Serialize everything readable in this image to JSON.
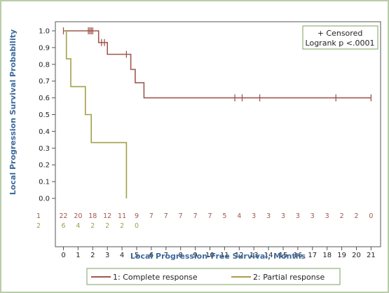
{
  "chart_data": {
    "type": "line",
    "subtype": "kaplan-meier step curve",
    "xlabel": "Local Progression-Free Survival, Months",
    "ylabel": "Local Progression Survival Probability",
    "xlim": [
      -0.5,
      21.5
    ],
    "ylim": [
      0,
      1.0
    ],
    "xticks": [
      "0",
      "1",
      "2",
      "3",
      "4",
      "5",
      "6",
      "7",
      "8",
      "9",
      "10",
      "11",
      "12",
      "13",
      "14",
      "15",
      "16",
      "17",
      "18",
      "19",
      "20",
      "21"
    ],
    "yticks": [
      "0.0",
      "0.1",
      "0.2",
      "0.3",
      "0.4",
      "0.5",
      "0.6",
      "0.7",
      "0.8",
      "0.9",
      "1.0"
    ],
    "annotation": [
      "+ Censored",
      "Logrank p <.0001"
    ],
    "series": [
      {
        "name": "1: Complete response",
        "risk_label": "1",
        "color": "#a0574e",
        "steps": [
          [
            0,
            1.0
          ],
          [
            2.4,
            1.0
          ],
          [
            2.4,
            0.93
          ],
          [
            3.0,
            0.93
          ],
          [
            3.0,
            0.86
          ],
          [
            4.6,
            0.86
          ],
          [
            4.6,
            0.77
          ],
          [
            4.9,
            0.77
          ],
          [
            4.9,
            0.69
          ],
          [
            5.5,
            0.69
          ],
          [
            5.5,
            0.6
          ],
          [
            21.0,
            0.6
          ]
        ],
        "censored": [
          [
            0.0,
            1.0
          ],
          [
            1.7,
            1.0
          ],
          [
            1.8,
            1.0
          ],
          [
            1.9,
            1.0
          ],
          [
            2.0,
            1.0
          ],
          [
            2.6,
            0.93
          ],
          [
            2.8,
            0.93
          ],
          [
            4.3,
            0.86
          ],
          [
            11.7,
            0.6
          ],
          [
            12.2,
            0.6
          ],
          [
            13.4,
            0.6
          ],
          [
            18.6,
            0.6
          ],
          [
            21.0,
            0.6
          ]
        ],
        "at_risk": [
          "22",
          "20",
          "18",
          "12",
          "11",
          "9",
          "7",
          "7",
          "7",
          "7",
          "7",
          "5",
          "4",
          "3",
          "3",
          "3",
          "3",
          "3",
          "3",
          "2",
          "2",
          "0"
        ]
      },
      {
        "name": "2: Partial response",
        "risk_label": "2",
        "color": "#a4a04a",
        "steps": [
          [
            0,
            1.0
          ],
          [
            0.2,
            1.0
          ],
          [
            0.2,
            0.833
          ],
          [
            0.5,
            0.833
          ],
          [
            0.5,
            0.667
          ],
          [
            1.5,
            0.667
          ],
          [
            1.5,
            0.5
          ],
          [
            1.9,
            0.5
          ],
          [
            1.9,
            0.333
          ],
          [
            4.3,
            0.333
          ],
          [
            4.3,
            0.0
          ]
        ],
        "censored": [],
        "at_risk": [
          "6",
          "4",
          "2",
          "2",
          "2",
          "0"
        ]
      }
    ]
  }
}
